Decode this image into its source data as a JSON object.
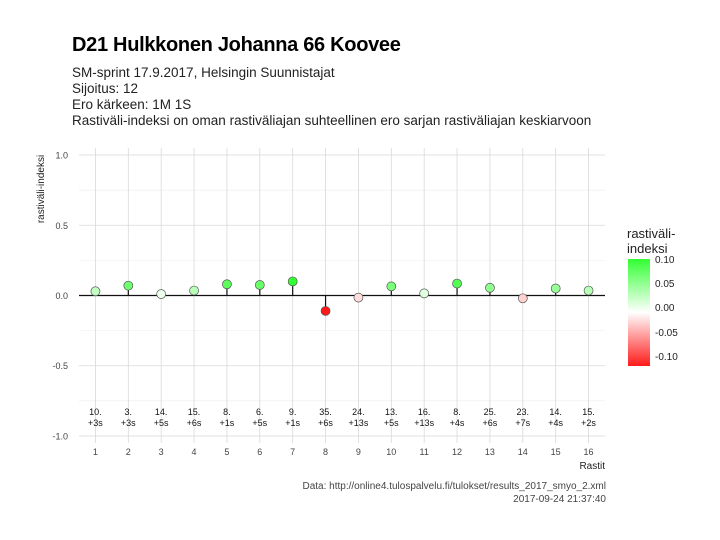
{
  "title": "D21 Hulkkonen Johanna 66 Koovee",
  "subtitle_lines": [
    "SM-sprint 17.9.2017, Helsingin Suunnistajat",
    "Sijoitus: 12",
    "Ero kärkeen: 1M 1S",
    "Rastiväli-indeksi on oman rastiväliajan suhteellinen ero sarjan rastiväliajan keskiarvoon"
  ],
  "caption": {
    "source": "Data: http://online4.tulospalvelu.fi/tulokset/results_2017_smyo_2.xml",
    "timestamp": "2017-09-24 21:37:40"
  },
  "legend": {
    "title_line1": "rastiväli-",
    "title_line2": "indeksi",
    "ticks": [
      "0.10",
      "0.05",
      "0.00",
      "-0.05",
      "-0.10"
    ],
    "colors": {
      "high": "#33ff33",
      "mid": "#ffffff",
      "low": "#ff1a1a"
    }
  },
  "chart_data": {
    "type": "scatter",
    "xlabel": "Rastit",
    "ylabel": "rastiväli-indeksi",
    "xlim": [
      0.5,
      16.5
    ],
    "ylim": [
      -1.05,
      1.05
    ],
    "x_ticks": [
      1,
      2,
      3,
      4,
      5,
      6,
      7,
      8,
      9,
      10,
      11,
      12,
      13,
      14,
      15,
      16
    ],
    "y_ticks": [
      "1.0",
      "0.5",
      "0.0",
      "-0.5",
      "-1.0"
    ],
    "grid": true,
    "points": [
      {
        "x": 1,
        "y": 0.03,
        "rank": "10.",
        "diff": "+3s"
      },
      {
        "x": 2,
        "y": 0.07,
        "rank": "3.",
        "diff": "+3s"
      },
      {
        "x": 3,
        "y": 0.01,
        "rank": "14.",
        "diff": "+5s"
      },
      {
        "x": 4,
        "y": 0.035,
        "rank": "15.",
        "diff": "+6s"
      },
      {
        "x": 5,
        "y": 0.08,
        "rank": "8.",
        "diff": "+1s"
      },
      {
        "x": 6,
        "y": 0.075,
        "rank": "6.",
        "diff": "+5s"
      },
      {
        "x": 7,
        "y": 0.1,
        "rank": "9.",
        "diff": "+1s"
      },
      {
        "x": 8,
        "y": -0.11,
        "rank": "35.",
        "diff": "+6s"
      },
      {
        "x": 9,
        "y": -0.015,
        "rank": "24.",
        "diff": "+13s"
      },
      {
        "x": 10,
        "y": 0.065,
        "rank": "13.",
        "diff": "+5s"
      },
      {
        "x": 11,
        "y": 0.015,
        "rank": "16.",
        "diff": "+13s"
      },
      {
        "x": 12,
        "y": 0.085,
        "rank": "8.",
        "diff": "+4s"
      },
      {
        "x": 13,
        "y": 0.055,
        "rank": "25.",
        "diff": "+6s"
      },
      {
        "x": 14,
        "y": -0.02,
        "rank": "23.",
        "diff": "+7s"
      },
      {
        "x": 15,
        "y": 0.05,
        "rank": "14.",
        "diff": "+4s"
      },
      {
        "x": 16,
        "y": 0.035,
        "rank": "15.",
        "diff": "+2s"
      }
    ]
  }
}
